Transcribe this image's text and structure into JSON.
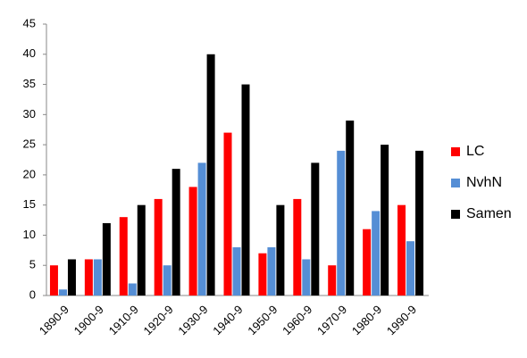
{
  "chart_data": {
    "type": "bar",
    "categories": [
      "1890-9",
      "1900-9",
      "1910-9",
      "1920-9",
      "1930-9",
      "1940-9",
      "1950-9",
      "1960-9",
      "1970-9",
      "1980-9",
      "1990-9"
    ],
    "series": [
      {
        "name": "LC",
        "color": "#ff0000",
        "values": [
          5,
          6,
          13,
          16,
          18,
          27,
          7,
          16,
          5,
          11,
          15
        ]
      },
      {
        "name": "NvhN",
        "color": "#558ed5",
        "values": [
          1,
          6,
          2,
          5,
          22,
          8,
          8,
          6,
          24,
          14,
          9
        ]
      },
      {
        "name": "Samen",
        "color": "#000000",
        "values": [
          6,
          12,
          15,
          21,
          40,
          35,
          15,
          22,
          29,
          25,
          24
        ]
      }
    ],
    "ylim": [
      0,
      45
    ],
    "yticks": [
      0,
      5,
      10,
      15,
      20,
      25,
      30,
      35,
      40,
      45
    ],
    "grid": false,
    "legend": "right"
  }
}
